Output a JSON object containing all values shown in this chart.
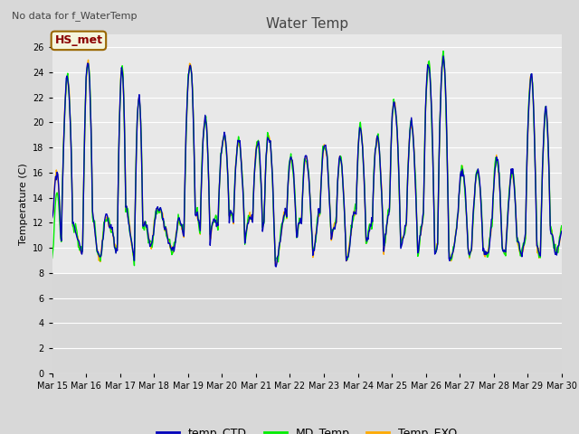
{
  "title": "Water Temp",
  "ylabel": "Temperature (C)",
  "top_left_text": "No data for f_WaterTemp",
  "annotation_text": "HS_met",
  "ylim": [
    0,
    27
  ],
  "yticks": [
    0,
    2,
    4,
    6,
    8,
    10,
    12,
    14,
    16,
    18,
    20,
    22,
    24,
    26
  ],
  "xtick_labels": [
    "Mar 15",
    "Mar 16",
    "Mar 17",
    "Mar 18",
    "Mar 19",
    "Mar 20",
    "Mar 21",
    "Mar 22",
    "Mar 23",
    "Mar 24",
    "Mar 25",
    "Mar 26",
    "Mar 27",
    "Mar 28",
    "Mar 29",
    "Mar 30"
  ],
  "legend_colors_ctd": "#0000bb",
  "legend_colors_md": "#00ee00",
  "legend_colors_exo": "#ffaa00",
  "line_width": 1.0,
  "bg_color": "#d8d8d8",
  "plot_bg_upper": "#e8e8e8",
  "plot_bg_lower": "#d0d0d0"
}
